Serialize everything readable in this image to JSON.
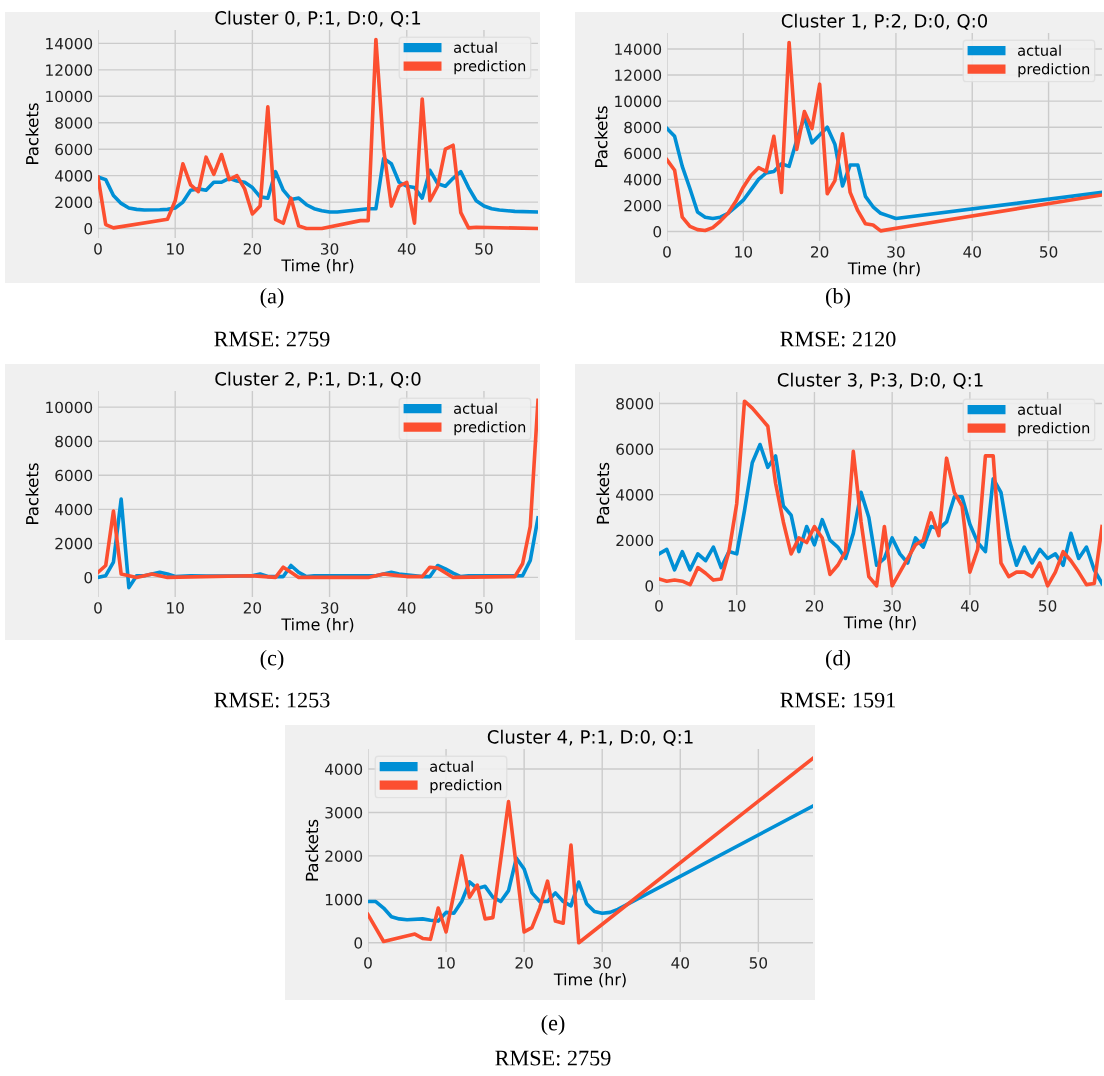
{
  "chart_data": [
    {
      "type": "line",
      "title": "Cluster 0, P:1, D:0, Q:1",
      "xlabel": "Time (hr)",
      "ylabel": "Packets",
      "annotations": [
        "(a)",
        "RMSE: 2759"
      ],
      "xlim": [
        0,
        57
      ],
      "ylim": [
        -715,
        15015
      ],
      "xticks": [
        0,
        10,
        20,
        30,
        40,
        50
      ],
      "yticks": [
        0,
        2000,
        4000,
        6000,
        8000,
        10000,
        12000,
        14000
      ],
      "grid": true,
      "legend": "top right",
      "series": [
        {
          "name": "actual",
          "color": "#008fd5",
          "x": [
            0,
            1,
            2,
            3,
            4,
            5,
            6,
            8,
            9,
            10,
            11,
            12,
            13,
            14,
            15,
            16,
            17,
            18,
            19,
            20,
            21,
            22,
            23,
            24,
            25,
            26,
            27,
            28,
            29,
            30,
            31,
            35,
            36,
            37,
            38,
            39,
            40,
            41,
            42,
            43,
            44,
            45,
            46,
            47,
            48,
            49,
            50,
            51,
            52,
            54,
            57
          ],
          "values": [
            3900,
            3700,
            2500,
            1900,
            1550,
            1450,
            1400,
            1420,
            1450,
            1550,
            2000,
            2900,
            3000,
            2900,
            3500,
            3500,
            3800,
            3600,
            3500,
            3100,
            2400,
            2300,
            4300,
            2900,
            2200,
            2300,
            1800,
            1500,
            1350,
            1250,
            1250,
            1500,
            1500,
            5300,
            4900,
            3500,
            3200,
            3100,
            2300,
            4400,
            3400,
            3200,
            3800,
            4300,
            3100,
            2100,
            1700,
            1500,
            1400,
            1300,
            1250
          ]
        },
        {
          "name": "prediction",
          "color": "#fc4f30",
          "x": [
            0,
            1,
            2,
            9,
            10,
            11,
            12,
            13,
            14,
            15,
            16,
            17,
            18,
            19,
            20,
            21,
            22,
            23,
            24,
            25,
            26,
            27,
            29,
            34,
            35,
            36,
            37,
            38,
            39,
            40,
            41,
            42,
            43,
            44,
            45,
            46,
            47,
            48,
            49,
            57
          ],
          "values": [
            3900,
            300,
            50,
            700,
            2100,
            4900,
            3300,
            2800,
            5400,
            4100,
            5600,
            3700,
            4000,
            3000,
            1100,
            1700,
            9200,
            700,
            400,
            2300,
            200,
            0,
            0,
            600,
            600,
            14300,
            6000,
            1700,
            3200,
            3500,
            400,
            9800,
            2100,
            3200,
            6000,
            6300,
            1200,
            50,
            100,
            0
          ]
        }
      ]
    },
    {
      "type": "line",
      "title": "Cluster 1, P:2, D:0, Q:0",
      "xlabel": "Time (hr)",
      "ylabel": "Packets",
      "annotations": [
        "(b)",
        "RMSE: 2120"
      ],
      "xlim": [
        0,
        57
      ],
      "ylim": [
        -725,
        15225
      ],
      "xticks": [
        0,
        10,
        20,
        30,
        40,
        50
      ],
      "yticks": [
        0,
        2000,
        4000,
        6000,
        8000,
        10000,
        12000,
        14000
      ],
      "grid": true,
      "legend": "top right",
      "series": [
        {
          "name": "actual",
          "color": "#008fd5",
          "x": [
            0,
            1,
            2,
            3,
            4,
            5,
            6,
            7,
            8,
            9,
            10,
            11,
            12,
            13,
            14,
            15,
            16,
            17,
            18,
            19,
            20,
            21,
            22,
            23,
            24,
            25,
            26,
            27,
            28,
            29,
            30,
            57
          ],
          "values": [
            7900,
            7300,
            5000,
            3300,
            1500,
            1100,
            1000,
            1100,
            1400,
            1900,
            2400,
            3200,
            4000,
            4500,
            4600,
            5200,
            5000,
            7000,
            8800,
            6800,
            7400,
            8000,
            6700,
            3500,
            5100,
            5100,
            2700,
            1900,
            1400,
            1200,
            1000,
            3000
          ]
        },
        {
          "name": "prediction",
          "color": "#fc4f30",
          "x": [
            0,
            1,
            2,
            3,
            4,
            5,
            6,
            7,
            8,
            9,
            10,
            11,
            12,
            13,
            14,
            15,
            16,
            17,
            18,
            19,
            20,
            21,
            22,
            23,
            24,
            25,
            26,
            27,
            28,
            30,
            57
          ],
          "values": [
            5500,
            4700,
            1100,
            400,
            150,
            80,
            300,
            800,
            1400,
            2300,
            3400,
            4300,
            4900,
            4600,
            7300,
            3000,
            14500,
            6300,
            9200,
            7900,
            11300,
            2900,
            3900,
            7500,
            3000,
            1600,
            600,
            500,
            50,
            250,
            2800
          ]
        }
      ]
    },
    {
      "type": "line",
      "title": "Cluster 2, P:1, D:1, Q:0",
      "xlabel": "Time (hr)",
      "ylabel": "Packets",
      "annotations": [
        "(c)",
        "RMSE: 1253"
      ],
      "xlim": [
        0,
        57
      ],
      "ylim": [
        -1150,
        10950
      ],
      "xticks": [
        0,
        10,
        20,
        30,
        40,
        50
      ],
      "yticks": [
        0,
        2000,
        4000,
        6000,
        8000,
        10000
      ],
      "grid": true,
      "legend": "top right",
      "series": [
        {
          "name": "actual",
          "color": "#008fd5",
          "x": [
            0,
            1,
            2,
            3,
            4,
            5,
            6,
            7,
            8,
            9,
            10,
            12,
            14,
            20,
            21,
            22,
            24,
            25,
            26,
            27,
            28,
            35,
            36,
            38,
            39,
            42,
            43,
            44,
            45,
            46,
            47,
            48,
            50,
            54,
            55,
            56,
            57
          ],
          "values": [
            0,
            100,
            900,
            4600,
            -600,
            100,
            100,
            200,
            300,
            200,
            50,
            100,
            80,
            100,
            200,
            50,
            50,
            700,
            300,
            50,
            100,
            100,
            100,
            300,
            200,
            50,
            50,
            700,
            500,
            250,
            50,
            100,
            100,
            100,
            100,
            1000,
            3500
          ]
        },
        {
          "name": "prediction",
          "color": "#fc4f30",
          "x": [
            0,
            1,
            2,
            3,
            4,
            5,
            7,
            8,
            9,
            20,
            23,
            24,
            25,
            26,
            29,
            35,
            37,
            38,
            40,
            42,
            43,
            44,
            46,
            54,
            55,
            56,
            57
          ],
          "values": [
            300,
            700,
            3900,
            200,
            100,
            0,
            200,
            100,
            0,
            100,
            0,
            600,
            300,
            0,
            0,
            0,
            200,
            150,
            50,
            50,
            600,
            550,
            0,
            50,
            800,
            3000,
            10400
          ]
        }
      ]
    },
    {
      "type": "line",
      "title": "Cluster 3, P:3, D:0, Q:1",
      "xlabel": "Time (hr)",
      "ylabel": "Packets",
      "annotations": [
        "(d)",
        "RMSE: 1591"
      ],
      "xlim": [
        0,
        57
      ],
      "ylim": [
        -405,
        8505
      ],
      "xticks": [
        0,
        10,
        20,
        30,
        40,
        50
      ],
      "yticks": [
        0,
        2000,
        4000,
        6000,
        8000
      ],
      "grid": true,
      "legend": "top right",
      "series": [
        {
          "name": "actual",
          "color": "#008fd5",
          "x": [
            0,
            1,
            2,
            3,
            4,
            5,
            6,
            7,
            8,
            9,
            10,
            11,
            12,
            13,
            14,
            15,
            16,
            17,
            18,
            19,
            20,
            21,
            22,
            23,
            24,
            25,
            26,
            27,
            28,
            29,
            30,
            31,
            32,
            33,
            34,
            35,
            36,
            37,
            38,
            39,
            40,
            41,
            42,
            43,
            44,
            45,
            46,
            47,
            48,
            49,
            50,
            51,
            52,
            53,
            54,
            55,
            56,
            57
          ],
          "values": [
            1400,
            1600,
            700,
            1500,
            700,
            1400,
            1100,
            1700,
            800,
            1500,
            1400,
            3300,
            5400,
            6200,
            5200,
            5700,
            3500,
            3100,
            1500,
            2600,
            1800,
            2900,
            2000,
            1700,
            1200,
            2300,
            4100,
            3000,
            900,
            1200,
            2100,
            1400,
            1000,
            2100,
            1700,
            2600,
            2500,
            2800,
            3900,
            3900,
            2700,
            1900,
            1500,
            4700,
            4100,
            2100,
            900,
            1700,
            1000,
            1600,
            1200,
            1400,
            900,
            2300,
            1200,
            1700,
            700,
            100
          ]
        },
        {
          "name": "prediction",
          "color": "#fc4f30",
          "x": [
            0,
            1,
            2,
            3,
            4,
            5,
            6,
            7,
            8,
            9,
            10,
            11,
            12,
            13,
            14,
            15,
            16,
            17,
            18,
            19,
            20,
            21,
            22,
            23,
            24,
            25,
            26,
            27,
            28,
            29,
            30,
            31,
            32,
            33,
            34,
            35,
            36,
            37,
            38,
            39,
            40,
            41,
            42,
            43,
            44,
            45,
            46,
            47,
            48,
            49,
            50,
            51,
            52,
            53,
            54,
            55,
            56,
            57
          ],
          "values": [
            300,
            200,
            250,
            200,
            50,
            800,
            550,
            250,
            300,
            1500,
            3600,
            8100,
            7800,
            7400,
            7000,
            4500,
            2800,
            1400,
            2100,
            1900,
            2600,
            2100,
            500,
            900,
            1500,
            5900,
            2800,
            400,
            0,
            2600,
            0,
            600,
            1200,
            1800,
            2000,
            3200,
            2200,
            5600,
            4100,
            3500,
            600,
            1600,
            5700,
            5700,
            1000,
            400,
            600,
            600,
            400,
            1000,
            0,
            600,
            1500,
            1100,
            600,
            50,
            100,
            2600
          ]
        }
      ]
    },
    {
      "type": "line",
      "title": "Cluster 4, P:1, D:0, Q:1",
      "xlabel": "Time (hr)",
      "ylabel": "Packets",
      "annotations": [
        "(e)",
        "RMSE: 2759"
      ],
      "xlim": [
        0,
        57
      ],
      "ylim": [
        -212,
        4462
      ],
      "xticks": [
        0,
        10,
        20,
        30,
        40,
        50
      ],
      "yticks": [
        0,
        1000,
        2000,
        3000,
        4000
      ],
      "grid": true,
      "legend": "top left",
      "series": [
        {
          "name": "actual",
          "color": "#008fd5",
          "x": [
            0,
            1,
            2,
            3,
            4,
            5,
            7,
            8,
            9,
            10,
            11,
            12,
            13,
            14,
            15,
            16,
            17,
            18,
            19,
            20,
            21,
            22,
            23,
            24,
            25,
            26,
            27,
            28,
            29,
            30,
            31,
            32,
            57
          ],
          "values": [
            950,
            950,
            800,
            600,
            550,
            530,
            550,
            520,
            500,
            700,
            680,
            950,
            1400,
            1250,
            1300,
            1050,
            950,
            1200,
            1950,
            1700,
            1150,
            950,
            950,
            1150,
            950,
            850,
            1400,
            900,
            720,
            680,
            700,
            770,
            3150
          ]
        },
        {
          "name": "prediction",
          "color": "#fc4f30",
          "x": [
            0,
            2,
            6,
            7,
            8,
            9,
            10,
            12,
            13,
            14,
            15,
            16,
            18,
            20,
            21,
            22,
            23,
            24,
            25,
            26,
            27,
            57
          ],
          "values": [
            650,
            30,
            200,
            100,
            80,
            800,
            250,
            2000,
            1050,
            1330,
            550,
            580,
            3250,
            250,
            350,
            800,
            1420,
            500,
            450,
            2250,
            0,
            4250
          ]
        }
      ]
    }
  ]
}
